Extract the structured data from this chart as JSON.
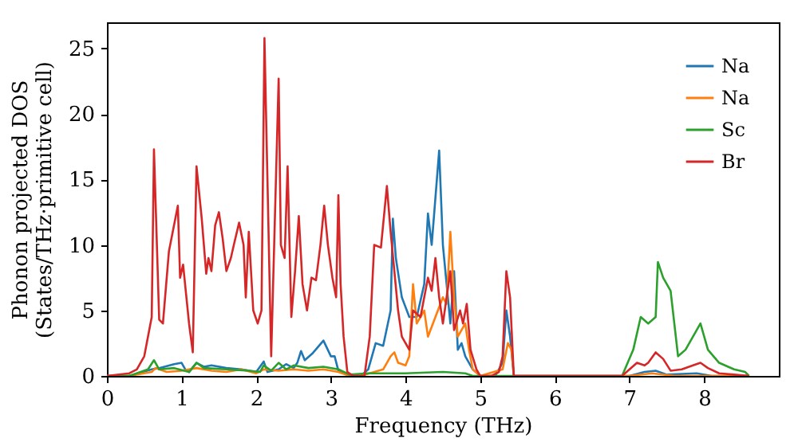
{
  "chart_data": {
    "type": "line",
    "xlabel": "Frequency (THz)",
    "ylabel": "Phonon projected DOS\n(States/THz·primitive cell)",
    "xlim": [
      0,
      9
    ],
    "ylim": [
      0,
      27
    ],
    "xticks": [
      0,
      1,
      2,
      3,
      4,
      5,
      6,
      7,
      8
    ],
    "yticks": [
      0,
      5,
      10,
      15,
      20,
      25
    ],
    "legend": "top right",
    "grid": false,
    "series": [
      {
        "name": "Na",
        "color": "#1f77b4",
        "x": [
          0,
          0.3,
          0.6,
          0.7,
          0.9,
          1.0,
          1.05,
          1.1,
          1.2,
          1.3,
          1.4,
          1.6,
          1.8,
          2.0,
          2.1,
          2.15,
          2.3,
          2.4,
          2.5,
          2.55,
          2.6,
          2.65,
          2.75,
          2.9,
          3.0,
          3.05,
          3.1,
          3.25,
          3.4,
          3.5,
          3.55,
          3.6,
          3.7,
          3.8,
          3.83,
          3.87,
          3.95,
          4.05,
          4.15,
          4.25,
          4.3,
          4.35,
          4.45,
          4.5,
          4.55,
          4.6,
          4.65,
          4.7,
          4.75,
          4.8,
          4.9,
          5.0,
          5.2,
          5.3,
          5.35,
          5.4,
          5.45,
          7.0,
          7.2,
          7.35,
          7.5,
          7.9,
          8.1,
          8.6
        ],
        "values": [
          0,
          0,
          0.5,
          0.6,
          0.9,
          1,
          0.5,
          0.3,
          1,
          0.7,
          0.8,
          0.6,
          0.5,
          0.3,
          1.1,
          0.3,
          0.5,
          0.9,
          0.6,
          1,
          1.9,
          1.2,
          1.7,
          2.7,
          1.5,
          1.5,
          0.4,
          0,
          0,
          0.5,
          1.5,
          2.5,
          2.3,
          5,
          12,
          9,
          6,
          4.5,
          4.5,
          7,
          12.4,
          10,
          17.2,
          10,
          7,
          4,
          8,
          2,
          2.5,
          1.5,
          0.5,
          0,
          0,
          1,
          5,
          3,
          0,
          0,
          0.3,
          0.4,
          0.1,
          0.2,
          0,
          0
        ]
      },
      {
        "name": "Na",
        "color": "#ff7f0e",
        "x": [
          0,
          0.3,
          0.6,
          0.65,
          0.8,
          1.0,
          1.2,
          1.4,
          1.6,
          1.8,
          2.0,
          2.1,
          2.3,
          2.5,
          2.7,
          2.9,
          3.1,
          3.25,
          3.4,
          3.7,
          3.8,
          3.85,
          3.9,
          4.0,
          4.05,
          4.1,
          4.15,
          4.25,
          4.3,
          4.4,
          4.5,
          4.55,
          4.6,
          4.65,
          4.7,
          4.8,
          4.85,
          4.9,
          5.0,
          5.3,
          5.37,
          5.42,
          5.45,
          7.0,
          7.3,
          7.6,
          8.6
        ],
        "values": [
          0,
          0,
          0.3,
          0.6,
          0.3,
          0.4,
          0.6,
          0.4,
          0.3,
          0.5,
          0.2,
          0.5,
          0.4,
          0.5,
          0.4,
          0.5,
          0.3,
          0,
          0,
          0.5,
          1.5,
          1.8,
          1,
          0.8,
          1.5,
          7,
          4,
          5,
          3,
          4.5,
          6,
          5.5,
          11,
          6,
          3,
          4,
          2,
          0.5,
          0,
          0.5,
          2.5,
          2,
          0,
          0,
          0.2,
          0,
          0
        ]
      },
      {
        "name": "Sc",
        "color": "#2ca02c",
        "x": [
          0,
          0.3,
          0.55,
          0.63,
          0.7,
          0.9,
          1.1,
          1.2,
          1.3,
          1.6,
          1.9,
          2.05,
          2.1,
          2.2,
          2.3,
          2.4,
          2.5,
          2.7,
          2.9,
          3.1,
          3.25,
          3.5,
          4.0,
          4.5,
          4.8,
          4.9,
          6.9,
          7.05,
          7.15,
          7.25,
          7.35,
          7.38,
          7.45,
          7.55,
          7.65,
          7.75,
          7.85,
          7.95,
          8.05,
          8.2,
          8.4,
          8.55,
          8.6
        ],
        "values": [
          0,
          0,
          0.5,
          1.2,
          0.5,
          0.6,
          0.3,
          1,
          0.6,
          0.5,
          0.4,
          0.3,
          0.8,
          0.4,
          1,
          0.5,
          0.8,
          0.6,
          0.7,
          0.5,
          0.1,
          0.2,
          0.2,
          0.3,
          0.2,
          0,
          0,
          2,
          4.5,
          4,
          4.5,
          8.7,
          7.5,
          6.5,
          1.5,
          2,
          3,
          4,
          2,
          1,
          0.5,
          0.3,
          0
        ]
      },
      {
        "name": "Br",
        "color": "#d62728",
        "x": [
          0,
          0.3,
          0.4,
          0.5,
          0.6,
          0.63,
          0.7,
          0.75,
          0.83,
          0.95,
          0.98,
          1.02,
          1.1,
          1.15,
          1.2,
          1.27,
          1.33,
          1.36,
          1.4,
          1.45,
          1.5,
          1.55,
          1.6,
          1.66,
          1.7,
          1.77,
          1.83,
          1.86,
          1.9,
          1.96,
          2.02,
          2.07,
          2.11,
          2.2,
          2.3,
          2.33,
          2.38,
          2.42,
          2.47,
          2.52,
          2.57,
          2.62,
          2.68,
          2.74,
          2.8,
          2.86,
          2.91,
          2.96,
          3.02,
          3.07,
          3.1,
          3.13,
          3.17,
          3.22,
          3.3,
          3.45,
          3.52,
          3.58,
          3.67,
          3.75,
          3.8,
          3.9,
          3.95,
          4.05,
          4.1,
          4.2,
          4.3,
          4.35,
          4.4,
          4.45,
          4.5,
          4.6,
          4.65,
          4.73,
          4.77,
          4.82,
          4.87,
          4.95,
          5.0,
          5.15,
          5.25,
          5.3,
          5.35,
          5.4,
          5.45,
          6.9,
          7.0,
          7.1,
          7.2,
          7.25,
          7.35,
          7.45,
          7.55,
          7.7,
          7.85,
          7.95,
          8.05,
          8.2,
          8.4,
          8.6
        ],
        "values": [
          0,
          0.2,
          0.5,
          1.5,
          4.5,
          17.3,
          4.3,
          4,
          9.5,
          13,
          7.5,
          8.5,
          4,
          1.8,
          16,
          12,
          7.8,
          9,
          8,
          11.5,
          12.5,
          10.5,
          8,
          9,
          10,
          11.7,
          10,
          6,
          11,
          5,
          4,
          5,
          25.8,
          1.5,
          22.7,
          10,
          9,
          16,
          4.5,
          8,
          12.2,
          7,
          5,
          7.5,
          7.3,
          10,
          13,
          10,
          7.5,
          6,
          13.8,
          7,
          3,
          0.3,
          0,
          0,
          3,
          10,
          9.8,
          14.5,
          11,
          5,
          3,
          2,
          5,
          4.5,
          7.5,
          6.5,
          9,
          6,
          4,
          8,
          3.5,
          5,
          4,
          5.5,
          2,
          0.5,
          0,
          0,
          0.3,
          1.5,
          8,
          6,
          0,
          0,
          0.5,
          1,
          0.8,
          1,
          1.8,
          1.3,
          0.4,
          0.5,
          0.8,
          1,
          0.6,
          0.2,
          0.1,
          0
        ]
      }
    ]
  }
}
